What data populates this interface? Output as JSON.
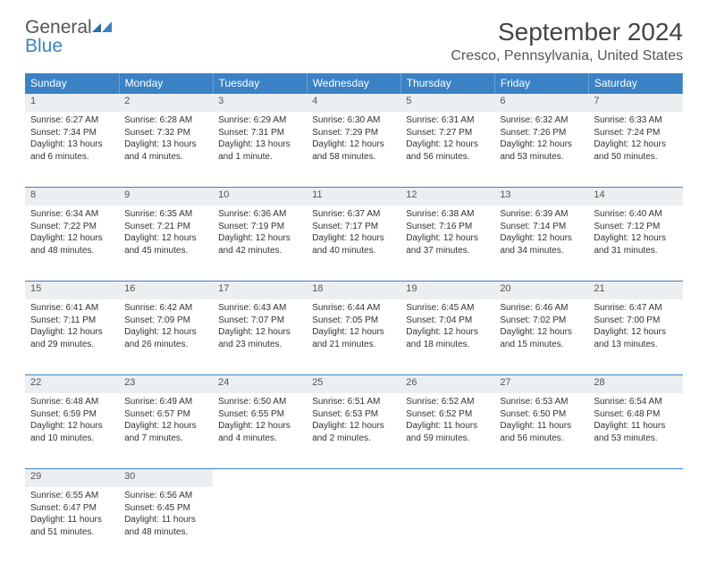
{
  "brand": {
    "name1": "General",
    "name2": "Blue"
  },
  "title": "September 2024",
  "location": "Cresco, Pennsylvania, United States",
  "headers": [
    "Sunday",
    "Monday",
    "Tuesday",
    "Wednesday",
    "Thursday",
    "Friday",
    "Saturday"
  ],
  "colors": {
    "header_bg": "#3b82c4",
    "header_text": "#ffffff",
    "daynum_bg": "#eceff1",
    "text": "#333333",
    "rule": "#3b82c4"
  },
  "weeks": [
    [
      {
        "n": "1",
        "sr": "Sunrise: 6:27 AM",
        "ss": "Sunset: 7:34 PM",
        "dl": "Daylight: 13 hours and 6 minutes."
      },
      {
        "n": "2",
        "sr": "Sunrise: 6:28 AM",
        "ss": "Sunset: 7:32 PM",
        "dl": "Daylight: 13 hours and 4 minutes."
      },
      {
        "n": "3",
        "sr": "Sunrise: 6:29 AM",
        "ss": "Sunset: 7:31 PM",
        "dl": "Daylight: 13 hours and 1 minute."
      },
      {
        "n": "4",
        "sr": "Sunrise: 6:30 AM",
        "ss": "Sunset: 7:29 PM",
        "dl": "Daylight: 12 hours and 58 minutes."
      },
      {
        "n": "5",
        "sr": "Sunrise: 6:31 AM",
        "ss": "Sunset: 7:27 PM",
        "dl": "Daylight: 12 hours and 56 minutes."
      },
      {
        "n": "6",
        "sr": "Sunrise: 6:32 AM",
        "ss": "Sunset: 7:26 PM",
        "dl": "Daylight: 12 hours and 53 minutes."
      },
      {
        "n": "7",
        "sr": "Sunrise: 6:33 AM",
        "ss": "Sunset: 7:24 PM",
        "dl": "Daylight: 12 hours and 50 minutes."
      }
    ],
    [
      {
        "n": "8",
        "sr": "Sunrise: 6:34 AM",
        "ss": "Sunset: 7:22 PM",
        "dl": "Daylight: 12 hours and 48 minutes."
      },
      {
        "n": "9",
        "sr": "Sunrise: 6:35 AM",
        "ss": "Sunset: 7:21 PM",
        "dl": "Daylight: 12 hours and 45 minutes."
      },
      {
        "n": "10",
        "sr": "Sunrise: 6:36 AM",
        "ss": "Sunset: 7:19 PM",
        "dl": "Daylight: 12 hours and 42 minutes."
      },
      {
        "n": "11",
        "sr": "Sunrise: 6:37 AM",
        "ss": "Sunset: 7:17 PM",
        "dl": "Daylight: 12 hours and 40 minutes."
      },
      {
        "n": "12",
        "sr": "Sunrise: 6:38 AM",
        "ss": "Sunset: 7:16 PM",
        "dl": "Daylight: 12 hours and 37 minutes."
      },
      {
        "n": "13",
        "sr": "Sunrise: 6:39 AM",
        "ss": "Sunset: 7:14 PM",
        "dl": "Daylight: 12 hours and 34 minutes."
      },
      {
        "n": "14",
        "sr": "Sunrise: 6:40 AM",
        "ss": "Sunset: 7:12 PM",
        "dl": "Daylight: 12 hours and 31 minutes."
      }
    ],
    [
      {
        "n": "15",
        "sr": "Sunrise: 6:41 AM",
        "ss": "Sunset: 7:11 PM",
        "dl": "Daylight: 12 hours and 29 minutes."
      },
      {
        "n": "16",
        "sr": "Sunrise: 6:42 AM",
        "ss": "Sunset: 7:09 PM",
        "dl": "Daylight: 12 hours and 26 minutes."
      },
      {
        "n": "17",
        "sr": "Sunrise: 6:43 AM",
        "ss": "Sunset: 7:07 PM",
        "dl": "Daylight: 12 hours and 23 minutes."
      },
      {
        "n": "18",
        "sr": "Sunrise: 6:44 AM",
        "ss": "Sunset: 7:05 PM",
        "dl": "Daylight: 12 hours and 21 minutes."
      },
      {
        "n": "19",
        "sr": "Sunrise: 6:45 AM",
        "ss": "Sunset: 7:04 PM",
        "dl": "Daylight: 12 hours and 18 minutes."
      },
      {
        "n": "20",
        "sr": "Sunrise: 6:46 AM",
        "ss": "Sunset: 7:02 PM",
        "dl": "Daylight: 12 hours and 15 minutes."
      },
      {
        "n": "21",
        "sr": "Sunrise: 6:47 AM",
        "ss": "Sunset: 7:00 PM",
        "dl": "Daylight: 12 hours and 13 minutes."
      }
    ],
    [
      {
        "n": "22",
        "sr": "Sunrise: 6:48 AM",
        "ss": "Sunset: 6:59 PM",
        "dl": "Daylight: 12 hours and 10 minutes."
      },
      {
        "n": "23",
        "sr": "Sunrise: 6:49 AM",
        "ss": "Sunset: 6:57 PM",
        "dl": "Daylight: 12 hours and 7 minutes."
      },
      {
        "n": "24",
        "sr": "Sunrise: 6:50 AM",
        "ss": "Sunset: 6:55 PM",
        "dl": "Daylight: 12 hours and 4 minutes."
      },
      {
        "n": "25",
        "sr": "Sunrise: 6:51 AM",
        "ss": "Sunset: 6:53 PM",
        "dl": "Daylight: 12 hours and 2 minutes."
      },
      {
        "n": "26",
        "sr": "Sunrise: 6:52 AM",
        "ss": "Sunset: 6:52 PM",
        "dl": "Daylight: 11 hours and 59 minutes."
      },
      {
        "n": "27",
        "sr": "Sunrise: 6:53 AM",
        "ss": "Sunset: 6:50 PM",
        "dl": "Daylight: 11 hours and 56 minutes."
      },
      {
        "n": "28",
        "sr": "Sunrise: 6:54 AM",
        "ss": "Sunset: 6:48 PM",
        "dl": "Daylight: 11 hours and 53 minutes."
      }
    ],
    [
      {
        "n": "29",
        "sr": "Sunrise: 6:55 AM",
        "ss": "Sunset: 6:47 PM",
        "dl": "Daylight: 11 hours and 51 minutes."
      },
      {
        "n": "30",
        "sr": "Sunrise: 6:56 AM",
        "ss": "Sunset: 6:45 PM",
        "dl": "Daylight: 11 hours and 48 minutes."
      },
      null,
      null,
      null,
      null,
      null
    ]
  ]
}
